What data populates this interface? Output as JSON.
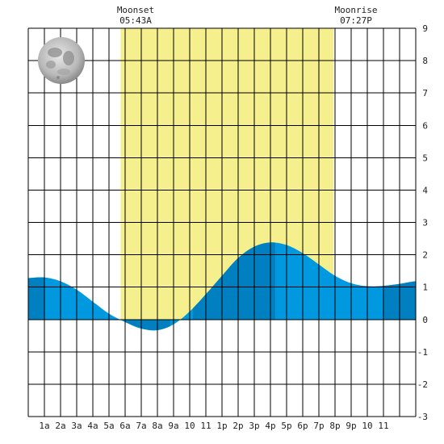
{
  "chart_data": {
    "type": "area",
    "title": "",
    "xlabel": "",
    "ylabel": "",
    "x_tick_labels": [
      "1a",
      "2a",
      "3a",
      "4a",
      "5a",
      "6a",
      "7a",
      "8a",
      "9a",
      "10",
      "11",
      "1p",
      "2p",
      "3p",
      "4p",
      "5p",
      "6p",
      "7p",
      "8p",
      "9p",
      "10",
      "11"
    ],
    "y_tick_labels": [
      "9",
      "8",
      "7",
      "6",
      "5",
      "4",
      "3",
      "2",
      "1",
      "0",
      "-1",
      "-2",
      "-3"
    ],
    "ylim": [
      -3,
      9
    ],
    "xlim_hours": [
      0,
      24
    ],
    "grid": true,
    "daylight_hours": [
      5.72,
      18.9
    ],
    "moonset": {
      "label": "Moonset",
      "time": "05:43A"
    },
    "moonrise": {
      "label": "Moonrise",
      "time": "07:27P"
    },
    "moon_phase": "full-moon-icon",
    "series": [
      {
        "x": [
          0,
          1,
          2,
          3,
          4,
          5,
          6,
          7,
          8,
          9,
          10,
          11,
          12,
          13,
          14,
          15,
          16,
          17,
          18,
          19,
          20,
          21,
          22,
          23,
          24
        ],
        "y": [
          1.28,
          1.3,
          1.18,
          0.92,
          0.55,
          0.18,
          -0.08,
          -0.28,
          -0.33,
          -0.15,
          0.25,
          0.78,
          1.35,
          1.9,
          2.25,
          2.38,
          2.3,
          2.05,
          1.7,
          1.35,
          1.12,
          1.03,
          1.04,
          1.1,
          1.18
        ]
      }
    ],
    "dark_bands_hours": [
      [
        0,
        1
      ],
      [
        6.0,
        8.8
      ],
      [
        10.2,
        15.3
      ],
      [
        22.0,
        24.0
      ]
    ],
    "colors": {
      "daylight": "#f5ef8e",
      "tide_light": "#0099e0",
      "tide_dark": "#0080c0",
      "grid": "#000000",
      "background": "#ffffff"
    }
  }
}
